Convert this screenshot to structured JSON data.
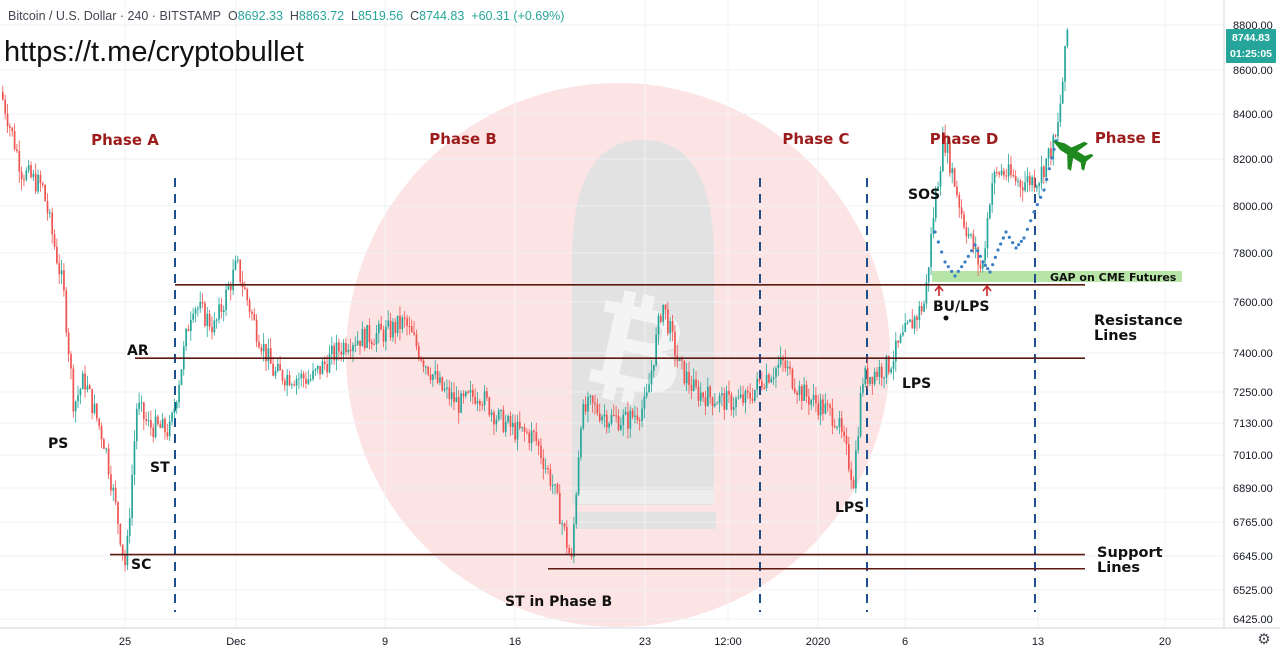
{
  "header": {
    "symbol": "Bitcoin / U.S. Dollar · 240 · BITSTAMP",
    "open_label": "O",
    "open": "8692.33",
    "high_label": "H",
    "high": "8863.72",
    "low_label": "L",
    "low": "8519.56",
    "close_label": "C",
    "close": "8744.83",
    "change": "+60.31 (+0.69%)"
  },
  "promo_link": "https://t.me/cryptobullet",
  "price_tag": {
    "price": "8744.83",
    "countdown": "01:25:05",
    "color": "#26a69a"
  },
  "colors": {
    "up": "#26a69a",
    "down": "#ef5350",
    "line": "#5a1a12",
    "phase": "#9c1c1c",
    "divider": "#1f4e8c",
    "gap": "#b7e4a7",
    "watermark": "#fde4e4"
  },
  "settings_icon": "gear-icon",
  "chart_data": {
    "type": "candlestick",
    "symbol": "Bitcoin / U.S. Dollar",
    "interval": "240",
    "exchange": "BITSTAMP",
    "y_scale": "log",
    "ylim": [
      6400,
      8950
    ],
    "y_ticks": [
      "8800.00",
      "8600.00",
      "8400.00",
      "8200.00",
      "8000.00",
      "7800.00",
      "7600.00",
      "7400.00",
      "7250.00",
      "7130.00",
      "7010.00",
      "6890.00",
      "6765.00",
      "6645.00",
      "6525.00",
      "6425.00"
    ],
    "x_ticks": [
      "25",
      "Dec",
      "9",
      "16",
      "23",
      "12:00",
      "2020",
      "6",
      "13",
      "20"
    ],
    "price_path": [
      [
        "Nov 19",
        8500
      ],
      [
        "Nov 20",
        8150
      ],
      [
        "Nov 21",
        8080
      ],
      [
        "Nov 22",
        7650
      ],
      [
        "Nov 22",
        7200
      ],
      [
        "Nov 23",
        7300
      ],
      [
        "Nov 24",
        7050
      ],
      [
        "Nov 25",
        6600
      ],
      [
        "Nov 25",
        7200
      ],
      [
        "Nov 26",
        7120
      ],
      [
        "Nov 27",
        7100
      ],
      [
        "Nov 28",
        7600
      ],
      [
        "Nov 29",
        7500
      ],
      [
        "Nov 30",
        7750
      ],
      [
        "Dec 1",
        7500
      ],
      [
        "Dec 2",
        7320
      ],
      [
        "Dec 4",
        7300
      ],
      [
        "Dec 5",
        7380
      ],
      [
        "Dec 6",
        7450
      ],
      [
        "Dec 8",
        7480
      ],
      [
        "Dec 9",
        7520
      ],
      [
        "Dec 10",
        7380
      ],
      [
        "Dec 11",
        7260
      ],
      [
        "Dec 12",
        7200
      ],
      [
        "Dec 13",
        7250
      ],
      [
        "Dec 14",
        7150
      ],
      [
        "Dec 15",
        7100
      ],
      [
        "Dec 16",
        7080
      ],
      [
        "Dec 17",
        6900
      ],
      [
        "Dec 18",
        6620
      ],
      [
        "Dec 18",
        7150
      ],
      [
        "Dec 19",
        7200
      ],
      [
        "Dec 20",
        7150
      ],
      [
        "Dec 21",
        7140
      ],
      [
        "Dec 22",
        7200
      ],
      [
        "Dec 23",
        7600
      ],
      [
        "Dec 24",
        7350
      ],
      [
        "Dec 25",
        7250
      ],
      [
        "Dec 26",
        7230
      ],
      [
        "Dec 27",
        7210
      ],
      [
        "Dec 28",
        7220
      ],
      [
        "Dec 29",
        7310
      ],
      [
        "Dec 30",
        7360
      ],
      [
        "Dec 31",
        7250
      ],
      [
        "Jan 1",
        7200
      ],
      [
        "Jan 2",
        7150
      ],
      [
        "Jan 3",
        6920
      ],
      [
        "Jan 3",
        7300
      ],
      [
        "Jan 4",
        7320
      ],
      [
        "Jan 5",
        7350
      ],
      [
        "Jan 6",
        7480
      ],
      [
        "Jan 7",
        7600
      ],
      [
        "Jan 7",
        8000
      ],
      [
        "Jan 8",
        8300
      ],
      [
        "Jan 9",
        7950
      ],
      [
        "Jan 10",
        7720
      ],
      [
        "Jan 10",
        8100
      ],
      [
        "Jan 11",
        8150
      ],
      [
        "Jan 12",
        8100
      ],
      [
        "Jan 13",
        8120
      ],
      [
        "Jan 14",
        8300
      ],
      [
        "Jan 14",
        8700
      ],
      [
        "Jan 15",
        8800
      ]
    ],
    "horizontal_lines": [
      7670,
      7380,
      6650,
      6600
    ],
    "annotations": [
      "Phase A",
      "Phase B",
      "Phase C",
      "Phase D",
      "Phase E",
      "PS",
      "SC",
      "AR",
      "ST",
      "ST in Phase B",
      "LPS",
      "LPS",
      "SOS",
      "BU/LPS",
      "GAP on CME Futures",
      "Resistance Lines",
      "Support Lines"
    ]
  },
  "annotations": {
    "phases": [
      "Phase A",
      "Phase B",
      "Phase C",
      "Phase D",
      "Phase E"
    ],
    "ps": "PS",
    "sc": "SC",
    "ar": "AR",
    "st": "ST",
    "st_phase_b": "ST in Phase B",
    "lps_1": "LPS",
    "lps_2": "LPS",
    "sos": "SOS",
    "bu_lps": "BU/LPS",
    "gap": "GAP on CME Futures",
    "resistance_1": "Resistance",
    "resistance_2": "Lines",
    "support_1": "Support",
    "support_2": "Lines"
  }
}
